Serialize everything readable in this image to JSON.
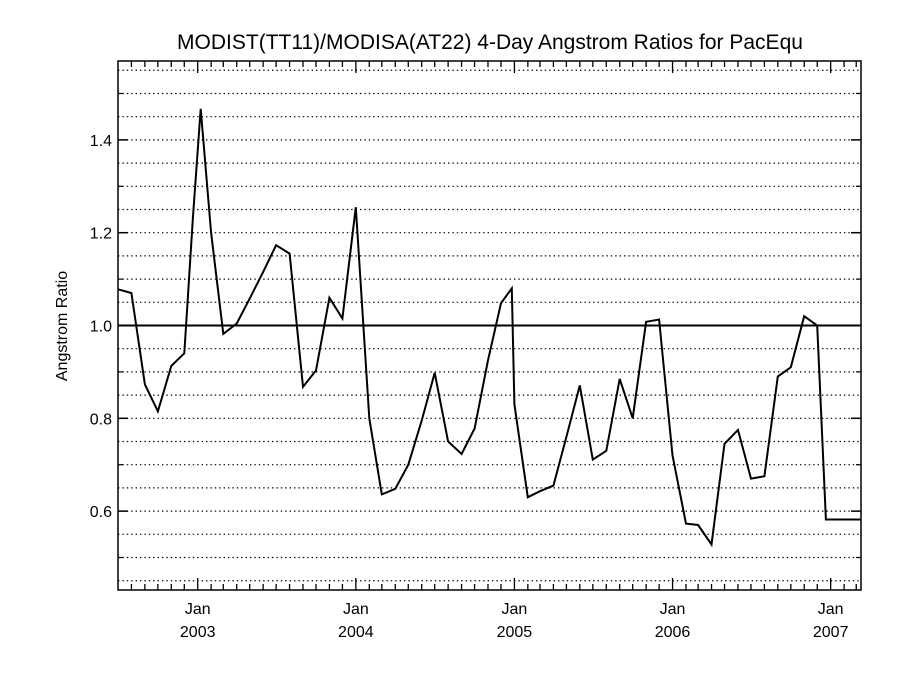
{
  "chart_data": {
    "type": "line",
    "title": "MODIST(TT11)/MODISA(AT22) 4-Day Angstrom Ratios for PacEqu",
    "xlabel": "",
    "ylabel": "Angstrom Ratio",
    "ylim": [
      0.43,
      1.57
    ],
    "xlim": [
      "2002-07-01",
      "2007-03-12"
    ],
    "reference_line": 1.0,
    "grid": "horizontal dotted",
    "y_ticks": [
      "0.6",
      "0.8",
      "1.0",
      "1.2",
      "1.4"
    ],
    "x_ticks": [
      {
        "month": "Jan",
        "year": "2003"
      },
      {
        "month": "Jan",
        "year": "2004"
      },
      {
        "month": "Jan",
        "year": "2005"
      },
      {
        "month": "Jan",
        "year": "2006"
      },
      {
        "month": "Jan",
        "year": "2007"
      }
    ],
    "series": [
      {
        "color": "#000000",
        "x": [
          "2002-07-01",
          "2002-08-01",
          "2002-09-01",
          "2002-10-01",
          "2002-11-01",
          "2002-12-01",
          "2002-12-21",
          "2003-01-08",
          "2003-02-01",
          "2003-03-01",
          "2003-04-01",
          "2003-05-01",
          "2003-06-01",
          "2003-07-01",
          "2003-08-01",
          "2003-09-01",
          "2003-10-01",
          "2003-11-01",
          "2003-12-01",
          "2004-01-01",
          "2004-02-01",
          "2004-03-01",
          "2004-04-01",
          "2004-05-01",
          "2004-06-01",
          "2004-07-01",
          "2004-08-01",
          "2004-09-01",
          "2004-10-01",
          "2004-11-01",
          "2004-12-01",
          "2004-12-26",
          "2005-01-01",
          "2005-02-01",
          "2005-03-01",
          "2005-04-01",
          "2005-05-01",
          "2005-06-01",
          "2005-07-01",
          "2005-08-01",
          "2005-09-01",
          "2005-10-01",
          "2005-11-01",
          "2005-12-01",
          "2006-01-01",
          "2006-02-01",
          "2006-03-01",
          "2006-04-01",
          "2006-05-01",
          "2006-06-01",
          "2006-07-01",
          "2006-08-01",
          "2006-09-01",
          "2006-10-01",
          "2006-11-01",
          "2006-12-01",
          "2006-12-21",
          "2007-01-12",
          "2007-02-12",
          "2007-03-12"
        ],
        "values": [
          1.078,
          1.07,
          0.873,
          0.815,
          0.913,
          0.94,
          1.232,
          1.467,
          1.2,
          0.982,
          1.004,
          1.058,
          1.115,
          1.173,
          1.155,
          0.868,
          0.903,
          1.06,
          1.015,
          1.255,
          0.8,
          0.636,
          0.648,
          0.7,
          0.795,
          0.898,
          0.75,
          0.723,
          0.778,
          0.925,
          1.048,
          1.08,
          0.83,
          0.63,
          0.643,
          0.655,
          0.76,
          0.871,
          0.711,
          0.73,
          0.885,
          0.8,
          1.008,
          1.013,
          0.72,
          0.573,
          0.57,
          0.528,
          0.745,
          0.775,
          0.67,
          0.675,
          0.89,
          0.91,
          1.02,
          1.0,
          0.582,
          0.582,
          0.582,
          0.582
        ]
      }
    ]
  }
}
